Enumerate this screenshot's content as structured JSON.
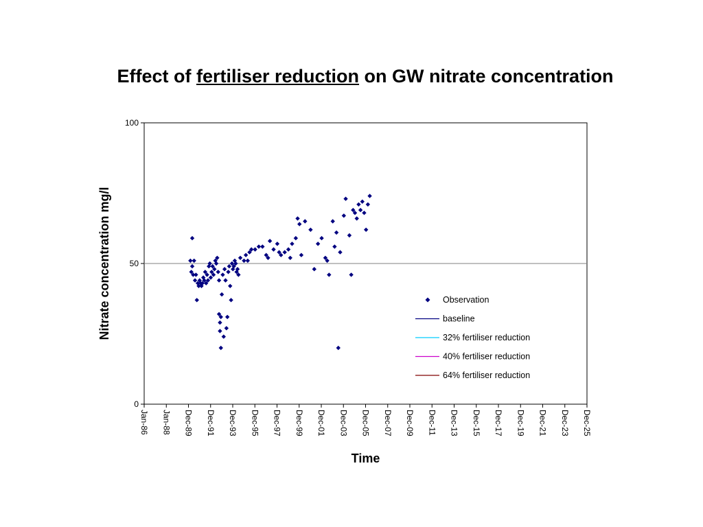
{
  "chart_data": {
    "type": "scatter",
    "title_parts": [
      "Effect of ",
      "fertiliser reduction",
      " on GW nitrate concentration"
    ],
    "xlabel": "Time",
    "ylabel": "Nitrate concentration mg/l",
    "ylim": [
      0,
      100
    ],
    "yticks": [
      0,
      50,
      100
    ],
    "xlim": [
      "1986-01",
      "2025-12"
    ],
    "xticks": [
      "Jan-86",
      "Jan-88",
      "Dec-89",
      "Dec-91",
      "Dec-93",
      "Dec-95",
      "Dec-97",
      "Dec-99",
      "Dec-01",
      "Dec-03",
      "Dec-05",
      "Dec-07",
      "Dec-09",
      "Dec-11",
      "Dec-13",
      "Dec-15",
      "Dec-17",
      "Dec-19",
      "Dec-21",
      "Dec-23",
      "Dec-25"
    ],
    "reference_line": {
      "y": 50,
      "color": "#808080"
    },
    "grid": false,
    "legend_position": "right-inside",
    "series": [
      {
        "name": "Observation",
        "kind": "scatter",
        "color": "#000080",
        "points": [
          [
            "1990-03",
            51
          ],
          [
            "1990-04",
            47
          ],
          [
            "1990-05",
            49
          ],
          [
            "1990-05",
            59
          ],
          [
            "1990-06",
            46
          ],
          [
            "1990-07",
            51
          ],
          [
            "1990-08",
            44
          ],
          [
            "1990-09",
            46
          ],
          [
            "1990-10",
            37
          ],
          [
            "1990-11",
            43
          ],
          [
            "1990-12",
            42
          ],
          [
            "1991-01",
            44
          ],
          [
            "1991-02",
            43
          ],
          [
            "1991-03",
            42
          ],
          [
            "1991-04",
            43
          ],
          [
            "1991-05",
            45
          ],
          [
            "1991-06",
            44
          ],
          [
            "1991-07",
            47
          ],
          [
            "1991-08",
            43
          ],
          [
            "1991-09",
            46
          ],
          [
            "1991-10",
            44
          ],
          [
            "1991-11",
            49
          ],
          [
            "1991-12",
            50
          ],
          [
            "1992-01",
            45
          ],
          [
            "1992-02",
            47
          ],
          [
            "1992-03",
            49
          ],
          [
            "1992-04",
            46
          ],
          [
            "1992-05",
            48
          ],
          [
            "1992-06",
            51
          ],
          [
            "1992-07",
            50
          ],
          [
            "1992-08",
            52
          ],
          [
            "1992-09",
            47
          ],
          [
            "1992-10",
            44
          ],
          [
            "1992-10",
            32
          ],
          [
            "1992-11",
            29
          ],
          [
            "1992-11",
            26
          ],
          [
            "1992-12",
            31
          ],
          [
            "1992-12",
            20
          ],
          [
            "1993-01",
            39
          ],
          [
            "1993-02",
            46
          ],
          [
            "1993-03",
            24
          ],
          [
            "1993-04",
            48
          ],
          [
            "1993-05",
            44
          ],
          [
            "1993-06",
            27
          ],
          [
            "1993-07",
            31
          ],
          [
            "1993-08",
            47
          ],
          [
            "1993-09",
            49
          ],
          [
            "1993-10",
            42
          ],
          [
            "1993-11",
            37
          ],
          [
            "1993-12",
            50
          ],
          [
            "1994-01",
            48
          ],
          [
            "1994-02",
            49
          ],
          [
            "1994-03",
            51
          ],
          [
            "1994-04",
            50
          ],
          [
            "1994-05",
            47
          ],
          [
            "1994-06",
            48
          ],
          [
            "1994-07",
            46
          ],
          [
            "1994-09",
            52
          ],
          [
            "1995-01",
            51
          ],
          [
            "1995-03",
            53
          ],
          [
            "1995-05",
            51
          ],
          [
            "1995-07",
            54
          ],
          [
            "1995-09",
            55
          ],
          [
            "1996-01",
            55
          ],
          [
            "1996-05",
            56
          ],
          [
            "1996-09",
            56
          ],
          [
            "1997-01",
            53
          ],
          [
            "1997-03",
            52
          ],
          [
            "1997-05",
            58
          ],
          [
            "1997-09",
            55
          ],
          [
            "1998-01",
            57
          ],
          [
            "1998-03",
            54
          ],
          [
            "1998-05",
            53
          ],
          [
            "1998-09",
            54
          ],
          [
            "1999-01",
            55
          ],
          [
            "1999-03",
            52
          ],
          [
            "1999-05",
            57
          ],
          [
            "1999-09",
            59
          ],
          [
            "1999-11",
            66
          ],
          [
            "2000-01",
            64
          ],
          [
            "2000-03",
            53
          ],
          [
            "2000-07",
            65
          ],
          [
            "2001-01",
            62
          ],
          [
            "2001-05",
            48
          ],
          [
            "2001-09",
            57
          ],
          [
            "2002-01",
            59
          ],
          [
            "2002-05",
            52
          ],
          [
            "2002-07",
            51
          ],
          [
            "2002-09",
            46
          ],
          [
            "2003-01",
            65
          ],
          [
            "2003-03",
            56
          ],
          [
            "2003-05",
            61
          ],
          [
            "2003-07",
            20
          ],
          [
            "2003-09",
            54
          ],
          [
            "2004-01",
            67
          ],
          [
            "2004-03",
            73
          ],
          [
            "2004-07",
            60
          ],
          [
            "2004-09",
            46
          ],
          [
            "2004-11",
            69
          ],
          [
            "2005-01",
            68
          ],
          [
            "2005-03",
            66
          ],
          [
            "2005-05",
            71
          ],
          [
            "2005-07",
            69
          ],
          [
            "2005-09",
            72
          ],
          [
            "2005-11",
            68
          ],
          [
            "2006-01",
            62
          ],
          [
            "2006-03",
            71
          ],
          [
            "2006-05",
            74
          ]
        ]
      },
      {
        "name": "baseline",
        "kind": "line",
        "color": "#000080"
      },
      {
        "name": "32% fertiliser reduction",
        "kind": "line",
        "color": "#00ccff"
      },
      {
        "name": "40% fertiliser reduction",
        "kind": "line",
        "color": "#cc00cc"
      },
      {
        "name": "64% fertiliser reduction",
        "kind": "line",
        "color": "#800000"
      }
    ]
  }
}
